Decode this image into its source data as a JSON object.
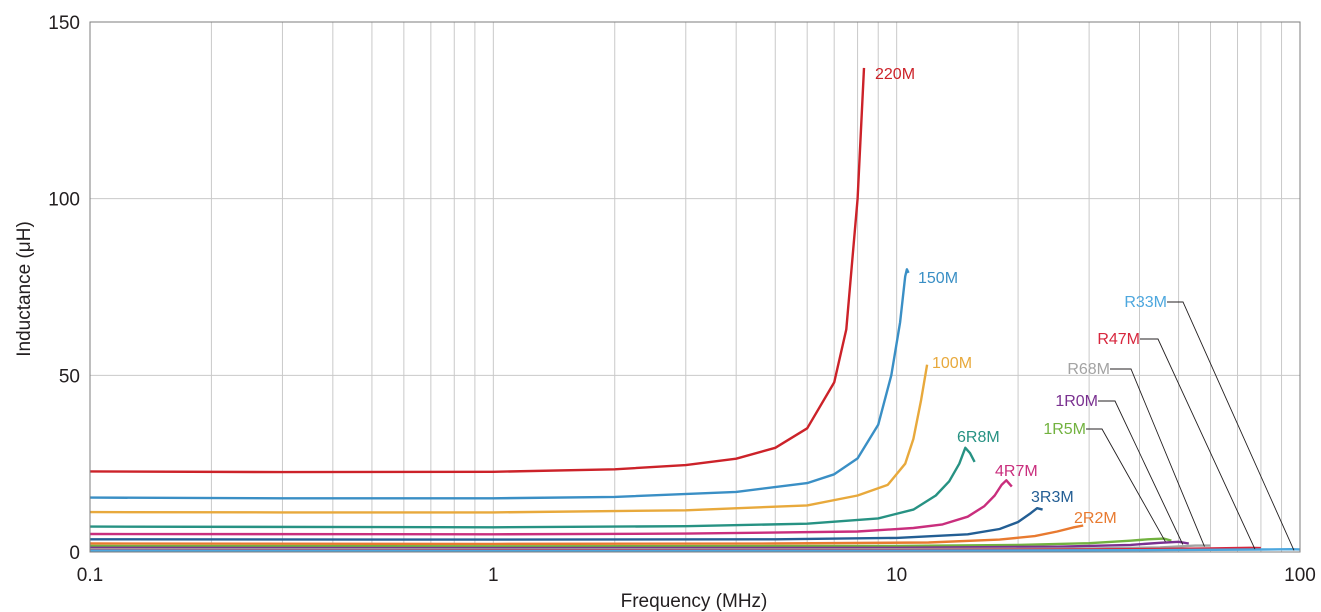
{
  "chart_data": {
    "type": "line",
    "title": "",
    "xlabel": "Frequency (MHz)",
    "ylabel": "Inductance (μH)",
    "x_scale": "log",
    "xlim": [
      0.1,
      100
    ],
    "ylim": [
      0,
      150
    ],
    "x_ticks": [
      0.1,
      1,
      10,
      100
    ],
    "x_tick_labels": [
      "0.1",
      "1",
      "10",
      "100"
    ],
    "y_ticks": [
      0,
      50,
      100,
      150
    ],
    "y_tick_labels": [
      "0",
      "50",
      "100",
      "150"
    ],
    "grid": true,
    "legend": "none",
    "series": [
      {
        "name": "220M",
        "color": "#cc2229",
        "points": [
          [
            0.1,
            22.8
          ],
          [
            0.3,
            22.6
          ],
          [
            1,
            22.7
          ],
          [
            2,
            23.4
          ],
          [
            3,
            24.6
          ],
          [
            4,
            26.4
          ],
          [
            5,
            29.5
          ],
          [
            6,
            35
          ],
          [
            7,
            48
          ],
          [
            7.5,
            63
          ],
          [
            8,
            100
          ],
          [
            8.3,
            137
          ]
        ]
      },
      {
        "name": "150M",
        "color": "#3a8fc5",
        "points": [
          [
            0.1,
            15.4
          ],
          [
            0.3,
            15.2
          ],
          [
            1,
            15.2
          ],
          [
            2,
            15.6
          ],
          [
            4,
            17
          ],
          [
            6,
            19.5
          ],
          [
            7,
            22
          ],
          [
            8,
            26.5
          ],
          [
            9,
            36
          ],
          [
            9.7,
            50
          ],
          [
            10.2,
            65
          ],
          [
            10.5,
            78
          ],
          [
            10.6,
            80
          ],
          [
            10.7,
            79
          ]
        ]
      },
      {
        "name": "100M",
        "color": "#e8a93c",
        "points": [
          [
            0.1,
            11.3
          ],
          [
            0.3,
            11.2
          ],
          [
            1,
            11.2
          ],
          [
            3,
            11.8
          ],
          [
            6,
            13.2
          ],
          [
            8,
            16
          ],
          [
            9.5,
            19
          ],
          [
            10.5,
            25
          ],
          [
            11,
            32
          ],
          [
            11.5,
            43
          ],
          [
            11.9,
            53
          ]
        ]
      },
      {
        "name": "6R8M",
        "color": "#279283",
        "points": [
          [
            0.1,
            7.2
          ],
          [
            1,
            7
          ],
          [
            3,
            7.3
          ],
          [
            6,
            8
          ],
          [
            9,
            9.5
          ],
          [
            11,
            12
          ],
          [
            12.5,
            16
          ],
          [
            13.5,
            20
          ],
          [
            14.3,
            25
          ],
          [
            14.8,
            29.5
          ],
          [
            15.2,
            28
          ],
          [
            15.6,
            25.5
          ]
        ]
      },
      {
        "name": "4R7M",
        "color": "#c92e7d",
        "points": [
          [
            0.1,
            5.1
          ],
          [
            1,
            5
          ],
          [
            3,
            5.2
          ],
          [
            8,
            5.8
          ],
          [
            11,
            6.8
          ],
          [
            13,
            7.8
          ],
          [
            15,
            10
          ],
          [
            16.5,
            13
          ],
          [
            17.5,
            16
          ],
          [
            18.2,
            19
          ],
          [
            18.7,
            20.3
          ],
          [
            19.3,
            18.5
          ]
        ]
      },
      {
        "name": "3R3M",
        "color": "#235e94",
        "points": [
          [
            0.1,
            3.6
          ],
          [
            1,
            3.5
          ],
          [
            5,
            3.6
          ],
          [
            10,
            4
          ],
          [
            15,
            5
          ],
          [
            18,
            6.5
          ],
          [
            20,
            8.5
          ],
          [
            21.5,
            11
          ],
          [
            22.3,
            12.4
          ],
          [
            23,
            12
          ]
        ]
      },
      {
        "name": "2R2M",
        "color": "#e87a30",
        "points": [
          [
            0.1,
            2.4
          ],
          [
            1,
            2.3
          ],
          [
            5,
            2.4
          ],
          [
            12,
            2.7
          ],
          [
            18,
            3.5
          ],
          [
            22,
            4.5
          ],
          [
            25,
            5.8
          ],
          [
            27.5,
            7
          ],
          [
            29,
            7.5
          ]
        ]
      },
      {
        "name": "1R5M",
        "color": "#72b23f",
        "points": [
          [
            0.1,
            1.7
          ],
          [
            1,
            1.6
          ],
          [
            10,
            1.7
          ],
          [
            20,
            2
          ],
          [
            30,
            2.5
          ],
          [
            38,
            3.2
          ],
          [
            42,
            3.6
          ],
          [
            46,
            3.8
          ],
          [
            48,
            3.2
          ]
        ]
      },
      {
        "name": "1R0M",
        "color": "#7a3190",
        "points": [
          [
            0.1,
            1.2
          ],
          [
            1,
            1.1
          ],
          [
            10,
            1.2
          ],
          [
            25,
            1.5
          ],
          [
            38,
            2
          ],
          [
            45,
            2.6
          ],
          [
            50,
            2.9
          ],
          [
            53,
            2.4
          ]
        ]
      },
      {
        "name": "R68M",
        "color": "#a3a3a3",
        "points": [
          [
            0.1,
            0.8
          ],
          [
            1,
            0.75
          ],
          [
            10,
            0.8
          ],
          [
            30,
            1
          ],
          [
            45,
            1.3
          ],
          [
            55,
            1.8
          ],
          [
            60,
            1.8
          ]
        ]
      },
      {
        "name": "R47M",
        "color": "#d7263d",
        "points": [
          [
            0.1,
            0.55
          ],
          [
            1,
            0.5
          ],
          [
            10,
            0.55
          ],
          [
            30,
            0.7
          ],
          [
            60,
            1
          ],
          [
            75,
            1.2
          ],
          [
            80,
            1.1
          ]
        ]
      },
      {
        "name": "R33M",
        "color": "#4da7de",
        "points": [
          [
            0.1,
            0.4
          ],
          [
            1,
            0.35
          ],
          [
            10,
            0.38
          ],
          [
            40,
            0.5
          ],
          [
            80,
            0.7
          ],
          [
            95,
            0.8
          ],
          [
            100,
            0.75
          ]
        ]
      }
    ]
  }
}
